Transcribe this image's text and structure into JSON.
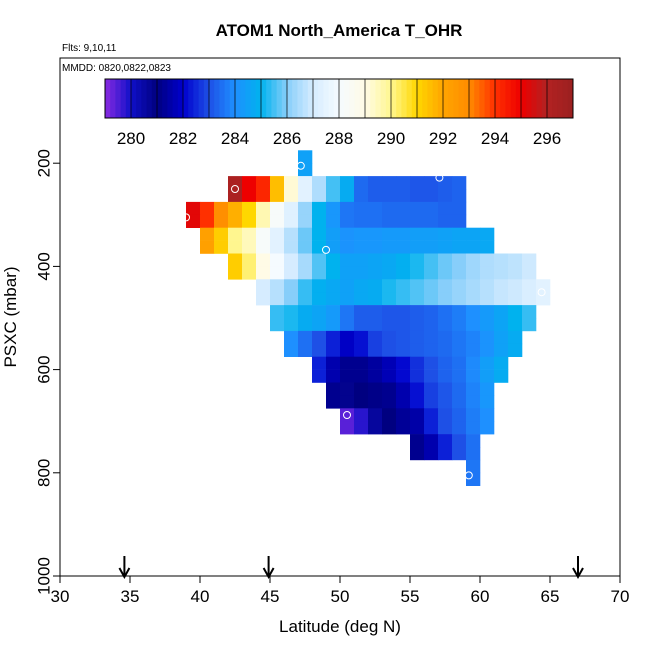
{
  "chart_data": {
    "type": "heatmap",
    "title": "ATOM1 North_America T_OHR",
    "subtitle_lines": [
      "Flts: 9,10,11",
      "MMDD: 0820,0822,0823"
    ],
    "xlabel": "Latitude (deg N)",
    "ylabel": "PSXC (mbar)",
    "xlim": [
      30,
      70
    ],
    "ylim": [
      1000,
      0
    ],
    "x_ticks": [
      30,
      35,
      40,
      45,
      50,
      55,
      60,
      65,
      70
    ],
    "y_ticks": [
      200,
      400,
      600,
      800,
      1000
    ],
    "colorbar": {
      "range": [
        279,
        297
      ],
      "ticks": [
        280,
        282,
        284,
        286,
        288,
        290,
        292,
        294,
        296
      ],
      "stops": [
        {
          "v": 279,
          "c": "#8a2be2"
        },
        {
          "v": 280,
          "c": "#1010c8"
        },
        {
          "v": 281,
          "c": "#000080"
        },
        {
          "v": 282,
          "c": "#0000cd"
        },
        {
          "v": 283,
          "c": "#1e50e6"
        },
        {
          "v": 284,
          "c": "#1e90ff"
        },
        {
          "v": 285,
          "c": "#00b2ee"
        },
        {
          "v": 286,
          "c": "#87cefa"
        },
        {
          "v": 287,
          "c": "#d6ecff"
        },
        {
          "v": 288,
          "c": "#f5fbff"
        },
        {
          "v": 289,
          "c": "#fffbe6"
        },
        {
          "v": 290,
          "c": "#fff68f"
        },
        {
          "v": 291,
          "c": "#ffd700"
        },
        {
          "v": 292,
          "c": "#ffa500"
        },
        {
          "v": 293,
          "c": "#ff8c00"
        },
        {
          "v": 294,
          "c": "#ff3000"
        },
        {
          "v": 295,
          "c": "#ee0000"
        },
        {
          "v": 296,
          "c": "#b22222"
        },
        {
          "v": 297,
          "c": "#9b2020"
        }
      ]
    },
    "cell_size": {
      "lat": 1,
      "psxc": 25
    },
    "rows": [
      {
        "psxc": 175,
        "lat0": 47,
        "values": [
          284.5
        ]
      },
      {
        "psxc": 200,
        "lat0": 47,
        "values": [
          284.5
        ]
      },
      {
        "psxc": 225,
        "lat0": 42,
        "values": [
          296.3,
          295.0,
          294.2,
          291.5,
          289.2,
          287.4,
          286.5,
          285.5,
          284.8,
          283.4,
          283.2,
          283.2,
          283.2,
          283.1,
          283.1,
          283.2,
          283.3
        ]
      },
      {
        "psxc": 250,
        "lat0": 42,
        "values": [
          296.3,
          295.0,
          294.2,
          291.5,
          289.2,
          287.4,
          286.5,
          285.5,
          284.8,
          283.4,
          283.2,
          283.2,
          283.2,
          283.1,
          283.1,
          283.2,
          283.3
        ]
      },
      {
        "psxc": 275,
        "lat0": 39,
        "values": [
          295.2,
          294.0,
          292.9,
          291.8,
          291.0,
          289.6,
          288.2,
          287.3,
          286.2,
          285.0,
          284.2,
          283.6,
          283.5,
          283.5,
          283.4,
          283.4,
          283.4,
          283.4,
          283.3,
          283.3
        ]
      },
      {
        "psxc": 300,
        "lat0": 39,
        "values": [
          295.2,
          294.0,
          292.9,
          291.8,
          291.0,
          289.6,
          288.2,
          287.3,
          286.2,
          285.0,
          284.2,
          283.6,
          283.5,
          283.5,
          283.4,
          283.4,
          283.4,
          283.4,
          283.3,
          283.3
        ]
      },
      {
        "psxc": 325,
        "lat0": 40,
        "values": [
          292.2,
          291.2,
          290.0,
          289.5,
          288.2,
          287.4,
          286.6,
          285.8,
          285.0,
          284.4,
          284.1,
          284.2,
          284.2,
          284.3,
          284.3,
          284.4,
          284.4,
          284.5,
          284.6,
          284.6,
          284.7
        ]
      },
      {
        "psxc": 350,
        "lat0": 40,
        "values": [
          292.2,
          291.2,
          290.0,
          289.5,
          288.2,
          287.4,
          286.6,
          285.8,
          285.0,
          284.4,
          284.1,
          284.2,
          284.2,
          284.3,
          284.3,
          284.4,
          284.4,
          284.5,
          284.6,
          284.6,
          284.7
        ]
      },
      {
        "psxc": 375,
        "lat0": 42,
        "values": [
          291.2,
          290.2,
          289.0,
          288.0,
          287.0,
          286.4,
          285.6,
          285.0,
          284.5,
          284.5,
          284.6,
          284.7,
          284.9,
          285.2,
          285.5,
          285.8,
          286.0,
          286.3,
          286.5,
          286.6,
          286.7,
          286.9
        ]
      },
      {
        "psxc": 400,
        "lat0": 42,
        "values": [
          291.2,
          290.2,
          289.0,
          288.0,
          287.0,
          286.4,
          285.6,
          285.0,
          284.5,
          284.5,
          284.6,
          284.7,
          284.9,
          285.2,
          285.5,
          285.8,
          286.0,
          286.3,
          286.5,
          286.6,
          286.7,
          286.9
        ]
      },
      {
        "psxc": 425,
        "lat0": 44,
        "values": [
          287.0,
          286.6,
          286.0,
          285.4,
          284.9,
          284.7,
          284.5,
          284.7,
          284.8,
          285.2,
          285.4,
          285.6,
          285.8,
          286.0,
          286.2,
          286.4,
          286.6,
          286.8,
          286.9,
          287.1,
          287.4
        ]
      },
      {
        "psxc": 450,
        "lat0": 44,
        "values": [
          287.0,
          286.6,
          286.0,
          285.4,
          284.9,
          284.7,
          284.5,
          284.7,
          284.8,
          285.2,
          285.4,
          285.6,
          285.8,
          286.0,
          286.2,
          286.4,
          286.6,
          286.8,
          286.9,
          287.1,
          287.4
        ]
      },
      {
        "psxc": 475,
        "lat0": 45,
        "values": [
          285.4,
          285.2,
          284.8,
          284.6,
          284.3,
          283.6,
          283.2,
          283.2,
          283.1,
          283.1,
          283.2,
          283.3,
          283.5,
          283.7,
          284.0,
          284.3,
          284.6,
          285.0,
          285.4
        ]
      },
      {
        "psxc": 500,
        "lat0": 45,
        "values": [
          285.4,
          285.2,
          284.8,
          284.6,
          284.3,
          283.6,
          283.2,
          283.2,
          283.1,
          283.1,
          283.2,
          283.3,
          283.5,
          283.7,
          284.0,
          284.3,
          284.6,
          285.0,
          285.4
        ]
      },
      {
        "psxc": 525,
        "lat0": 46,
        "values": [
          284.0,
          283.5,
          283.0,
          282.4,
          281.9,
          282.2,
          282.8,
          283.0,
          283.1,
          283.2,
          283.3,
          283.4,
          283.6,
          283.8,
          284.1,
          284.5,
          284.8
        ]
      },
      {
        "psxc": 550,
        "lat0": 46,
        "values": [
          284.0,
          283.5,
          283.0,
          282.4,
          281.9,
          282.2,
          282.8,
          283.0,
          283.1,
          283.2,
          283.3,
          283.4,
          283.6,
          283.8,
          284.1,
          284.5,
          284.8
        ]
      },
      {
        "psxc": 575,
        "lat0": 48,
        "values": [
          282.4,
          281.6,
          281.2,
          281.2,
          281.4,
          281.7,
          282.1,
          282.6,
          283.0,
          283.3,
          283.5,
          283.9,
          284.4,
          284.8
        ]
      },
      {
        "psxc": 600,
        "lat0": 48,
        "values": [
          282.4,
          281.6,
          281.2,
          281.2,
          281.4,
          281.7,
          282.1,
          282.6,
          283.0,
          283.3,
          283.5,
          283.9,
          284.4,
          284.8
        ]
      },
      {
        "psxc": 625,
        "lat0": 49,
        "values": [
          281.2,
          280.8,
          281.0,
          281.1,
          281.2,
          281.6,
          282.2,
          282.8,
          283.1,
          283.4,
          283.8,
          284.2
        ]
      },
      {
        "psxc": 650,
        "lat0": 49,
        "values": [
          281.2,
          280.8,
          281.0,
          281.1,
          281.2,
          281.6,
          282.2,
          282.8,
          283.1,
          283.4,
          283.8,
          284.2
        ]
      },
      {
        "psxc": 675,
        "lat0": 50,
        "values": [
          279.4,
          279.8,
          280.6,
          281.0,
          281.3,
          281.5,
          282.4,
          283.0,
          283.3,
          283.7,
          284.0
        ]
      },
      {
        "psxc": 700,
        "lat0": 50,
        "values": [
          279.4,
          279.8,
          280.6,
          281.0,
          281.3,
          281.5,
          282.4,
          283.0,
          283.3,
          283.7,
          284.0
        ]
      },
      {
        "psxc": 725,
        "lat0": 55,
        "values": [
          281.2,
          281.6,
          282.4,
          283.0,
          283.5
        ]
      },
      {
        "psxc": 750,
        "lat0": 55,
        "values": [
          281.2,
          281.6,
          282.4,
          283.0,
          283.5
        ]
      },
      {
        "psxc": 775,
        "lat0": 59,
        "values": [
          283.6
        ]
      },
      {
        "psxc": 800,
        "lat0": 59,
        "values": [
          283.6
        ]
      }
    ],
    "markers": [
      {
        "lat": 47.2,
        "psxc": 205
      },
      {
        "lat": 51.8,
        "psxc": 215
      },
      {
        "lat": 57.1,
        "psxc": 228
      },
      {
        "lat": 42.5,
        "psxc": 250
      },
      {
        "lat": 39.0,
        "psxc": 305
      },
      {
        "lat": 49.0,
        "psxc": 368
      },
      {
        "lat": 64.4,
        "psxc": 450
      },
      {
        "lat": 50.5,
        "psxc": 688
      },
      {
        "lat": 59.2,
        "psxc": 805
      }
    ],
    "arrows_lat": [
      34.6,
      44.9,
      67.0
    ]
  }
}
